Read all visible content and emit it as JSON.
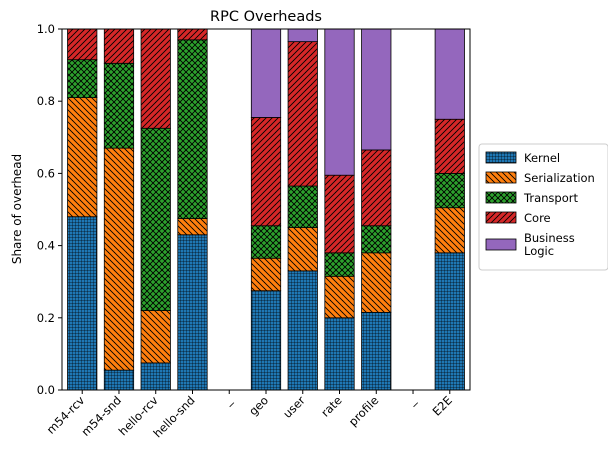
{
  "chart_data": {
    "type": "bar",
    "stacked": true,
    "title": "RPC Overheads",
    "ylabel": "Share of overhead",
    "xlabel": "",
    "ylim": [
      0,
      1.0
    ],
    "yticks": [
      "0.0",
      "0.2",
      "0.4",
      "0.6",
      "0.8",
      "1.0"
    ],
    "categories": [
      "m54-rcv",
      "m54-snd",
      "hello-rcv",
      "hello-snd",
      "_",
      "geo",
      "user",
      "rate",
      "profile",
      "_",
      "E2E"
    ],
    "legend_position": "right",
    "series": [
      {
        "name": "Kernel",
        "color": "#1f77b4",
        "hatch": "grid",
        "values": [
          0.48,
          0.055,
          0.075,
          0.43,
          0,
          0.275,
          0.33,
          0.2,
          0.215,
          0,
          0.38
        ]
      },
      {
        "name": "Serialization",
        "color": "#ff7f0e",
        "hatch": "diag-back",
        "values": [
          0.33,
          0.615,
          0.145,
          0.045,
          0,
          0.09,
          0.12,
          0.115,
          0.165,
          0,
          0.125
        ]
      },
      {
        "name": "Transport",
        "color": "#2ca02c",
        "hatch": "cross",
        "values": [
          0.105,
          0.235,
          0.505,
          0.495,
          0,
          0.09,
          0.115,
          0.065,
          0.075,
          0,
          0.095
        ]
      },
      {
        "name": "Core",
        "color": "#d62728",
        "hatch": "diag-fwd",
        "values": [
          0.085,
          0.095,
          0.275,
          0.03,
          0,
          0.3,
          0.4,
          0.215,
          0.21,
          0,
          0.15
        ]
      },
      {
        "name": "Business\nLogic",
        "color": "#9467bd",
        "hatch": "none",
        "values": [
          0,
          0,
          0,
          0,
          0,
          0.245,
          0.035,
          0.405,
          0.335,
          0,
          0.25
        ]
      }
    ]
  }
}
